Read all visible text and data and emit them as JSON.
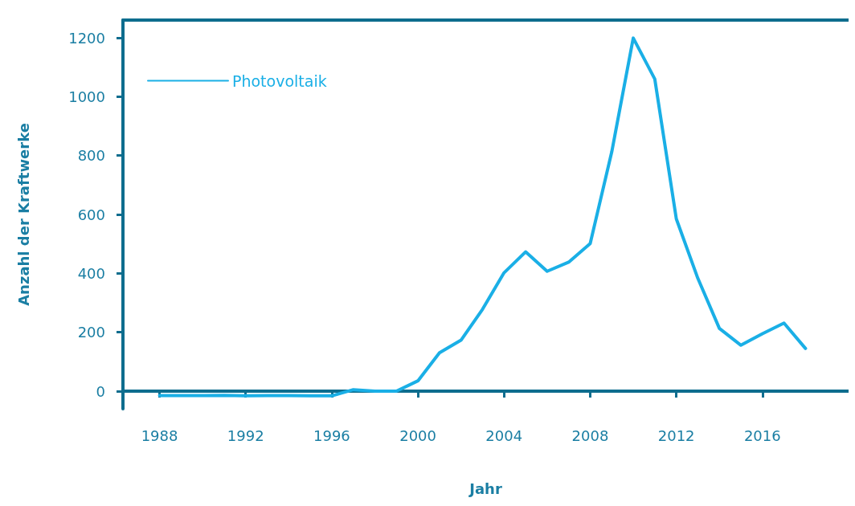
{
  "chart_data": {
    "type": "line",
    "xlabel": "Jahr",
    "ylabel": "Anzahl der Kraftwerke",
    "x": [
      1988,
      1989,
      1990,
      1991,
      1992,
      1993,
      1994,
      1995,
      1996,
      1997,
      1998,
      1999,
      2000,
      2001,
      2002,
      2003,
      2004,
      2005,
      2006,
      2007,
      2008,
      2009,
      2010,
      2011,
      2012,
      2013,
      2014,
      2015,
      2016,
      2017,
      2018
    ],
    "series": [
      {
        "name": "Photovoltaik",
        "color": "#1aafe6",
        "values": [
          -15,
          -15,
          -15,
          -14,
          -16,
          -15,
          -15,
          -16,
          -16,
          5,
          0,
          0,
          35,
          130,
          173,
          278,
          402,
          473,
          407,
          438,
          501,
          812,
          1199,
          1060,
          585,
          383,
          213,
          156,
          195,
          231,
          145
        ]
      }
    ],
    "xlim": [
      1986.3,
      2020
    ],
    "xticks": [
      1988,
      1992,
      1996,
      2000,
      2004,
      2008,
      2012,
      2016
    ],
    "ylim": [
      -60,
      1260
    ],
    "yticks": [
      0,
      200,
      400,
      600,
      800,
      1000,
      1200
    ],
    "grid": false,
    "legend": "top left",
    "marker": "none",
    "line_style": "solid"
  }
}
